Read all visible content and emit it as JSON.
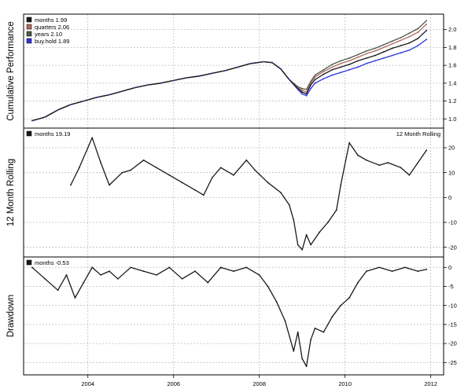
{
  "colors": {
    "months": "#1a1a1a",
    "quarters": "#b0685e",
    "years": "#4a5a4a",
    "buyhold": "#2a33e0",
    "grid": "#bdbdbd",
    "frame": "#000000",
    "background": "#ffffff"
  },
  "chart_data": [
    {
      "type": "line",
      "ylabel": "Cumulative Performance",
      "ylim": [
        0.95,
        2.12
      ],
      "yticks": [
        "1.0",
        "1.2",
        "1.4",
        "1.6",
        "1.8",
        "2.0"
      ],
      "xlim": [
        2002.5,
        2012.3
      ],
      "grid": true,
      "legend_position": "top-left",
      "legend": [
        "months 1.99",
        "quarters 2.06",
        "years 2.10",
        "buy.hold 1.89"
      ],
      "x": [
        2002.7,
        2003.0,
        2003.3,
        2003.6,
        2003.9,
        2004.2,
        2004.5,
        2004.8,
        2005.1,
        2005.4,
        2005.7,
        2006.0,
        2006.3,
        2006.6,
        2006.9,
        2007.2,
        2007.5,
        2007.8,
        2008.1,
        2008.3,
        2008.5,
        2008.7,
        2008.9,
        2009.0,
        2009.1,
        2009.2,
        2009.3,
        2009.5,
        2009.7,
        2009.9,
        2010.1,
        2010.3,
        2010.5,
        2010.7,
        2010.9,
        2011.1,
        2011.3,
        2011.5,
        2011.7,
        2011.9
      ],
      "series": [
        {
          "name": "months 1.99",
          "values": [
            0.98,
            1.02,
            1.1,
            1.16,
            1.2,
            1.24,
            1.27,
            1.31,
            1.35,
            1.38,
            1.4,
            1.43,
            1.46,
            1.48,
            1.51,
            1.54,
            1.58,
            1.62,
            1.64,
            1.63,
            1.56,
            1.44,
            1.34,
            1.3,
            1.28,
            1.38,
            1.44,
            1.5,
            1.55,
            1.58,
            1.61,
            1.65,
            1.68,
            1.71,
            1.75,
            1.79,
            1.82,
            1.85,
            1.9,
            1.99
          ]
        },
        {
          "name": "quarters 2.06",
          "values": [
            0.98,
            1.02,
            1.1,
            1.16,
            1.2,
            1.24,
            1.27,
            1.31,
            1.35,
            1.38,
            1.4,
            1.43,
            1.46,
            1.48,
            1.51,
            1.54,
            1.58,
            1.62,
            1.64,
            1.63,
            1.56,
            1.44,
            1.35,
            1.32,
            1.3,
            1.4,
            1.47,
            1.53,
            1.58,
            1.62,
            1.65,
            1.69,
            1.73,
            1.76,
            1.8,
            1.84,
            1.88,
            1.92,
            1.97,
            2.06
          ]
        },
        {
          "name": "years 2.10",
          "values": [
            0.98,
            1.02,
            1.1,
            1.16,
            1.2,
            1.24,
            1.27,
            1.31,
            1.35,
            1.38,
            1.4,
            1.43,
            1.46,
            1.48,
            1.51,
            1.54,
            1.58,
            1.62,
            1.64,
            1.63,
            1.56,
            1.44,
            1.36,
            1.34,
            1.33,
            1.42,
            1.49,
            1.55,
            1.61,
            1.65,
            1.68,
            1.72,
            1.76,
            1.79,
            1.83,
            1.87,
            1.91,
            1.96,
            2.01,
            2.1
          ]
        },
        {
          "name": "buy.hold 1.89",
          "values": [
            0.98,
            1.02,
            1.1,
            1.16,
            1.2,
            1.24,
            1.27,
            1.31,
            1.35,
            1.38,
            1.4,
            1.43,
            1.46,
            1.48,
            1.51,
            1.54,
            1.58,
            1.62,
            1.64,
            1.63,
            1.56,
            1.44,
            1.33,
            1.28,
            1.26,
            1.34,
            1.4,
            1.45,
            1.49,
            1.52,
            1.55,
            1.58,
            1.62,
            1.65,
            1.68,
            1.71,
            1.74,
            1.77,
            1.82,
            1.89
          ]
        }
      ]
    },
    {
      "type": "line",
      "ylabel": "12 Month Rolling",
      "annotation": "12 Month Rolling",
      "ylim": [
        -22,
        26
      ],
      "yticks": [
        "-20",
        "-10",
        "0",
        "10",
        "20"
      ],
      "xlim": [
        2002.5,
        2012.3
      ],
      "grid": true,
      "legend_position": "top-left",
      "legend": [
        "months 19.19"
      ],
      "x": [
        2003.6,
        2003.8,
        2004.0,
        2004.1,
        2004.3,
        2004.5,
        2004.8,
        2005.0,
        2005.3,
        2005.6,
        2005.9,
        2006.2,
        2006.5,
        2006.7,
        2006.9,
        2007.1,
        2007.4,
        2007.7,
        2007.9,
        2008.2,
        2008.5,
        2008.7,
        2008.8,
        2008.9,
        2009.0,
        2009.1,
        2009.2,
        2009.4,
        2009.6,
        2009.8,
        2009.9,
        2010.1,
        2010.3,
        2010.5,
        2010.8,
        2011.0,
        2011.3,
        2011.5,
        2011.7,
        2011.9
      ],
      "series": [
        {
          "name": "months 19.19",
          "values": [
            5,
            12,
            20,
            24,
            14,
            5,
            10,
            11,
            15,
            12,
            9,
            6,
            3,
            1,
            8,
            12,
            9,
            15,
            11,
            6,
            2,
            -3,
            -9,
            -19,
            -21,
            -15,
            -19,
            -14,
            -10,
            -5,
            5,
            22,
            17,
            15,
            13,
            14,
            12,
            9,
            14,
            19
          ]
        }
      ]
    },
    {
      "type": "line",
      "ylabel": "Drawdown",
      "ylim": [
        -27,
        1.5
      ],
      "yticks": [
        "-25",
        "-20",
        "-15",
        "-10",
        "-5",
        "0"
      ],
      "xlim": [
        2002.5,
        2012.3
      ],
      "xticks": [
        "2004",
        "2006",
        "2008",
        "2010",
        "2012"
      ],
      "grid": true,
      "legend_position": "top-left",
      "legend": [
        "months -0.53"
      ],
      "x": [
        2002.7,
        2003.0,
        2003.3,
        2003.5,
        2003.7,
        2003.9,
        2004.1,
        2004.3,
        2004.5,
        2004.7,
        2005.0,
        2005.3,
        2005.6,
        2005.9,
        2006.2,
        2006.5,
        2006.8,
        2007.1,
        2007.4,
        2007.7,
        2008.0,
        2008.2,
        2008.4,
        2008.6,
        2008.8,
        2008.9,
        2009.0,
        2009.1,
        2009.2,
        2009.3,
        2009.5,
        2009.7,
        2009.9,
        2010.1,
        2010.3,
        2010.5,
        2010.8,
        2011.1,
        2011.4,
        2011.7,
        2011.9
      ],
      "series": [
        {
          "name": "months -0.53",
          "values": [
            0,
            -3,
            -6,
            -2,
            -8,
            -4,
            0,
            -2,
            -1,
            -3,
            0,
            -1,
            -2,
            0,
            -3,
            -1,
            -4,
            0,
            -1,
            0,
            -2,
            -5,
            -9,
            -14,
            -22,
            -17,
            -24,
            -26,
            -19,
            -16,
            -17,
            -13,
            -10,
            -8,
            -4,
            -1,
            0,
            -1,
            0,
            -1,
            -0.53
          ]
        }
      ]
    }
  ]
}
